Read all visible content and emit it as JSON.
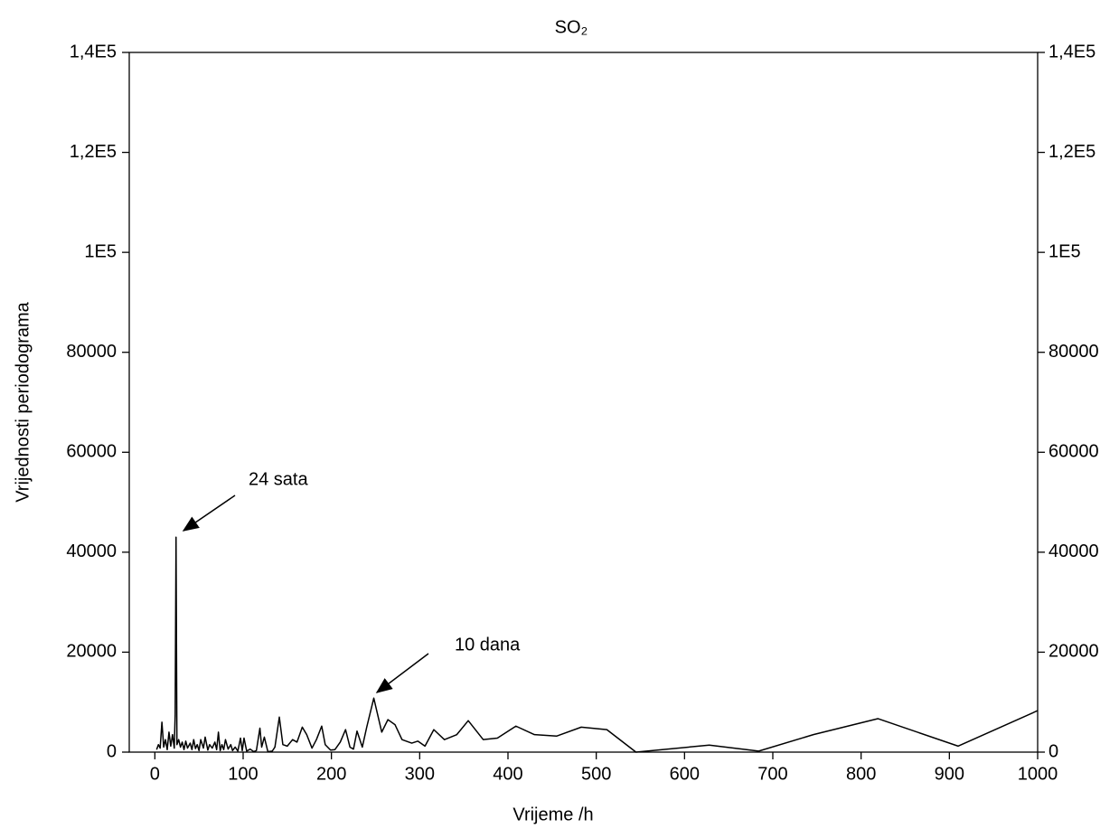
{
  "chart_data": {
    "type": "line",
    "title": "SO₂",
    "xlabel": "Vrijeme /h",
    "ylabel": "Vrijednosti periodograma",
    "x": [
      2,
      4,
      6,
      8,
      10,
      12,
      14,
      16,
      18,
      20,
      22,
      23,
      24,
      25,
      27,
      29,
      31,
      33,
      35,
      37,
      40,
      42,
      44,
      46,
      48,
      50,
      52,
      55,
      57,
      60,
      62,
      65,
      68,
      70,
      72,
      74,
      76,
      78,
      80,
      83,
      86,
      88,
      91,
      94,
      97,
      99,
      101,
      104,
      108,
      112,
      115,
      119,
      121,
      124,
      128,
      133,
      136,
      141,
      145,
      150,
      156,
      161,
      167,
      172,
      178,
      183,
      189,
      193,
      199,
      204,
      210,
      216,
      221,
      225,
      229,
      235,
      240,
      248,
      257,
      264,
      272,
      280,
      291,
      298,
      306,
      316,
      328,
      342,
      355,
      372,
      388,
      409,
      430,
      455,
      483,
      512,
      545,
      628,
      684,
      746,
      819,
      910,
      1000
    ],
    "values": [
      500,
      1500,
      800,
      6000,
      1000,
      2500,
      500,
      4000,
      1200,
      3500,
      800,
      7500,
      43000,
      1500,
      2500,
      1000,
      2000,
      500,
      2200,
      800,
      1800,
      500,
      2500,
      700,
      1500,
      300,
      2500,
      800,
      3000,
      400,
      1500,
      800,
      2000,
      500,
      4000,
      300,
      1500,
      500,
      2500,
      600,
      1500,
      300,
      1000,
      200,
      2800,
      300,
      2800,
      200,
      600,
      100,
      300,
      4800,
      1000,
      3000,
      100,
      200,
      1000,
      7000,
      1500,
      1200,
      2500,
      2000,
      5000,
      3500,
      800,
      2500,
      5200,
      1500,
      400,
      500,
      2000,
      4500,
      1000,
      600,
      4200,
      1000,
      5000,
      10800,
      4000,
      6500,
      5500,
      2500,
      1800,
      2200,
      1200,
      4500,
      2500,
      3500,
      6300,
      2500,
      2800,
      5200,
      3500,
      3200,
      5000,
      4500,
      0,
      1400,
      200,
      3500,
      6700,
      1200,
      8300
    ],
    "color": "#000000",
    "xlim": [
      -29,
      1000
    ],
    "xticks": [
      0,
      100,
      200,
      300,
      400,
      500,
      600,
      700,
      800,
      900,
      1000
    ],
    "ylim": [
      0,
      140000
    ],
    "yticks": [
      0,
      20000,
      40000,
      60000,
      80000,
      {
        "value": 100000,
        "label": "1E5"
      },
      {
        "value": 120000,
        "label": "1,2E5"
      },
      {
        "value": 140000,
        "label": "1,4E5"
      }
    ],
    "annotations": [
      "24 sata",
      "10 dana"
    ]
  }
}
